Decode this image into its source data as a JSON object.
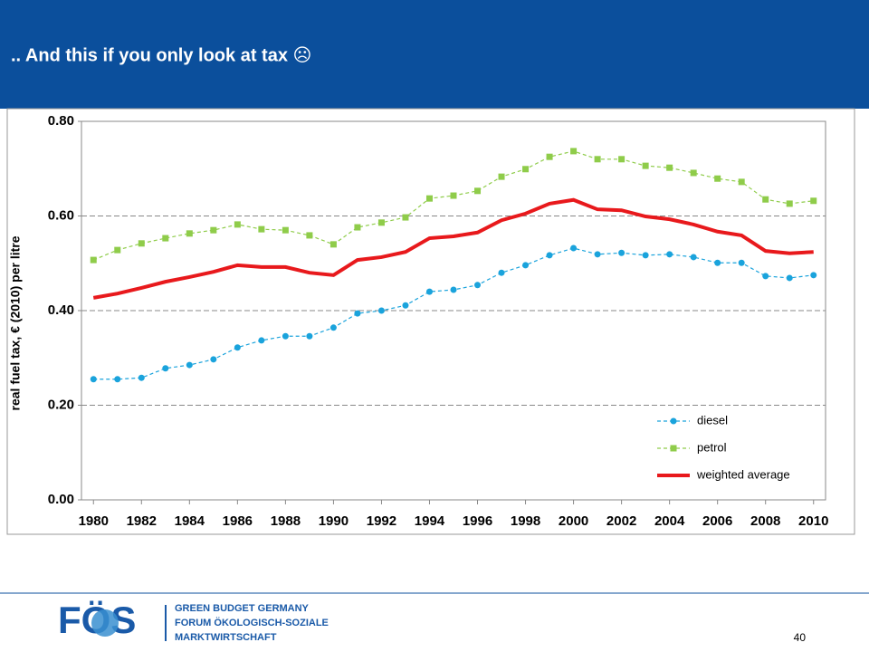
{
  "title": ".. And this if you only look at tax ☹",
  "chart_data": {
    "type": "line",
    "ylabel": "real fuel tax, € (2010) per litre",
    "x": [
      1980,
      1981,
      1982,
      1983,
      1984,
      1985,
      1986,
      1987,
      1988,
      1989,
      1990,
      1991,
      1992,
      1993,
      1994,
      1995,
      1996,
      1997,
      1998,
      1999,
      2000,
      2001,
      2002,
      2003,
      2004,
      2005,
      2006,
      2007,
      2008,
      2009,
      2010
    ],
    "xlim": [
      1979.5,
      2010.5
    ],
    "xticks": [
      1980,
      1982,
      1984,
      1986,
      1988,
      1990,
      1992,
      1994,
      1996,
      1998,
      2000,
      2002,
      2004,
      2006,
      2008,
      2010
    ],
    "ylim": [
      0,
      0.8
    ],
    "yticks": [
      {
        "value": 0,
        "label": "0.00"
      },
      {
        "value": 0.2,
        "label": "0.20"
      },
      {
        "value": 0.4,
        "label": "0.40"
      },
      {
        "value": 0.6,
        "label": "0.60"
      },
      {
        "value": 0.8,
        "label": "0.80"
      }
    ],
    "grid": true,
    "legend": "lower right",
    "series": [
      {
        "name": "diesel",
        "color": "#1aa3dc",
        "marker": "circle",
        "dashed": true,
        "values": [
          0.255,
          0.255,
          0.258,
          0.278,
          0.285,
          0.297,
          0.322,
          0.337,
          0.346,
          0.346,
          0.364,
          0.394,
          0.4,
          0.411,
          0.44,
          0.444,
          0.454,
          0.48,
          0.496,
          0.517,
          0.532,
          0.519,
          0.522,
          0.517,
          0.519,
          0.513,
          0.501,
          0.501,
          0.473,
          0.469,
          0.475
        ]
      },
      {
        "name": "petrol",
        "color": "#8fcc4a",
        "marker": "square",
        "dashed": true,
        "values": [
          0.507,
          0.528,
          0.542,
          0.553,
          0.563,
          0.57,
          0.582,
          0.572,
          0.57,
          0.559,
          0.54,
          0.576,
          0.586,
          0.597,
          0.637,
          0.643,
          0.653,
          0.683,
          0.699,
          0.725,
          0.737,
          0.72,
          0.72,
          0.706,
          0.702,
          0.691,
          0.679,
          0.672,
          0.635,
          0.626,
          0.632
        ]
      },
      {
        "name": "weighted average",
        "color": "#e8191c",
        "marker": "none",
        "dashed": false,
        "values": [
          0.427,
          0.436,
          0.448,
          0.461,
          0.471,
          0.482,
          0.496,
          0.492,
          0.492,
          0.48,
          0.475,
          0.507,
          0.513,
          0.524,
          0.553,
          0.557,
          0.565,
          0.591,
          0.605,
          0.626,
          0.634,
          0.614,
          0.612,
          0.599,
          0.593,
          0.582,
          0.567,
          0.559,
          0.526,
          0.521,
          0.524
        ]
      }
    ]
  },
  "footer": {
    "logo": "FÖS",
    "org_lines": [
      "GREEN BUDGET GERMANY",
      "FORUM ÖKOLOGISCH-SOZIALE",
      "MARKTWIRTSCHAFT"
    ],
    "page_number": "40"
  }
}
